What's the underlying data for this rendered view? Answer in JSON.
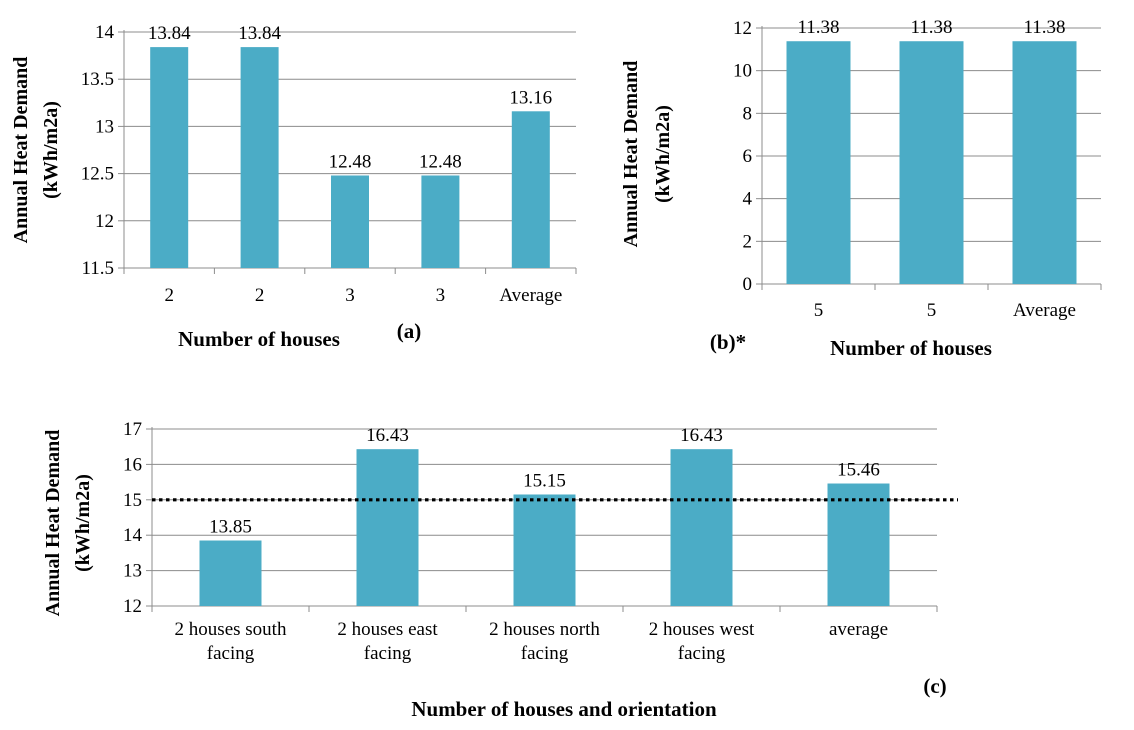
{
  "chart_data": [
    {
      "panel_label": "(a)",
      "type": "bar",
      "categories": [
        "2",
        "2",
        "3",
        "3",
        "Average"
      ],
      "values": [
        13.84,
        13.84,
        12.48,
        12.48,
        13.16
      ],
      "data_labels": [
        "13.84",
        "13.84",
        "12.48",
        "12.48",
        "13.16"
      ],
      "yticks": [
        "11.5",
        "12",
        "12.5",
        "13",
        "13.5",
        "14"
      ],
      "ylim": [
        11.5,
        14
      ],
      "xlabel": "Number of houses",
      "ylabel": [
        "Annual Heat Demand",
        "(kWh/m2a)"
      ],
      "grid": true,
      "bar_color": "#4bacc6"
    },
    {
      "panel_label": "(b)*",
      "type": "bar",
      "categories": [
        "5",
        "5",
        "Average"
      ],
      "values": [
        11.38,
        11.38,
        11.38
      ],
      "data_labels": [
        "11.38",
        "11.38",
        "11.38"
      ],
      "yticks": [
        "0",
        "2",
        "4",
        "6",
        "8",
        "10",
        "12"
      ],
      "ylim": [
        0,
        12
      ],
      "xlabel": "Number of houses",
      "ylabel": [
        "Annual Heat Demand",
        "(kWh/m2a)"
      ],
      "grid": true,
      "bar_color": "#4bacc6"
    },
    {
      "panel_label": "(c)",
      "type": "bar",
      "categories": [
        [
          "2 houses south",
          "facing"
        ],
        [
          "2 houses east",
          "facing"
        ],
        [
          "2 houses north",
          "facing"
        ],
        [
          "2 houses west",
          "facing"
        ],
        [
          "average"
        ]
      ],
      "values": [
        13.85,
        16.43,
        15.15,
        16.43,
        15.46
      ],
      "data_labels": [
        "13.85",
        "16.43",
        "15.15",
        "16.43",
        "15.46"
      ],
      "yticks": [
        "12",
        "13",
        "14",
        "15",
        "16",
        "17"
      ],
      "ylim": [
        12,
        17
      ],
      "reference_line": 15,
      "xlabel": "Number of houses and orientation",
      "ylabel": [
        "Annual Heat Demand",
        "(kWh/m2a)"
      ],
      "grid": true,
      "bar_color": "#4bacc6"
    }
  ]
}
